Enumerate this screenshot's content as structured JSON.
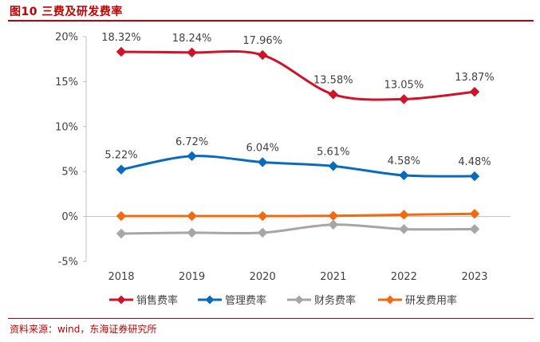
{
  "figure": {
    "title": "图10  三费及研发费率",
    "source": "资料来源：wind，东海证券研究所"
  },
  "chart_data": {
    "type": "line",
    "categories": [
      "2018",
      "2019",
      "2020",
      "2021",
      "2022",
      "2023"
    ],
    "ylim": [
      -5,
      20
    ],
    "ytick_values": [
      -5,
      0,
      5,
      10,
      15,
      20
    ],
    "ytick_labels": [
      "-5%",
      "0%",
      "5%",
      "10%",
      "15%",
      "20%"
    ],
    "grid": false,
    "legend_position": "bottom",
    "series": [
      {
        "name": "销售费率",
        "color": "#d0122a",
        "marker": "diamond",
        "values": [
          18.32,
          18.24,
          17.96,
          13.58,
          13.05,
          13.87
        ],
        "labels": [
          "18.32%",
          "18.24%",
          "17.96%",
          "13.58%",
          "13.05%",
          "13.87%"
        ]
      },
      {
        "name": "管理费率",
        "color": "#0a6bbd",
        "marker": "diamond",
        "values": [
          5.22,
          6.72,
          6.04,
          5.61,
          4.58,
          4.48
        ],
        "labels": [
          "5.22%",
          "6.72%",
          "6.04%",
          "5.61%",
          "4.58%",
          "4.48%"
        ]
      },
      {
        "name": "财务费率",
        "color": "#a6a6a6",
        "marker": "diamond",
        "values": [
          -1.9,
          -1.8,
          -1.8,
          -0.9,
          -1.4,
          -1.4
        ],
        "labels": []
      },
      {
        "name": "研发费用率",
        "color": "#f26a10",
        "marker": "diamond",
        "values": [
          0.05,
          0.05,
          0.05,
          0.08,
          0.2,
          0.3
        ],
        "labels": []
      }
    ]
  }
}
